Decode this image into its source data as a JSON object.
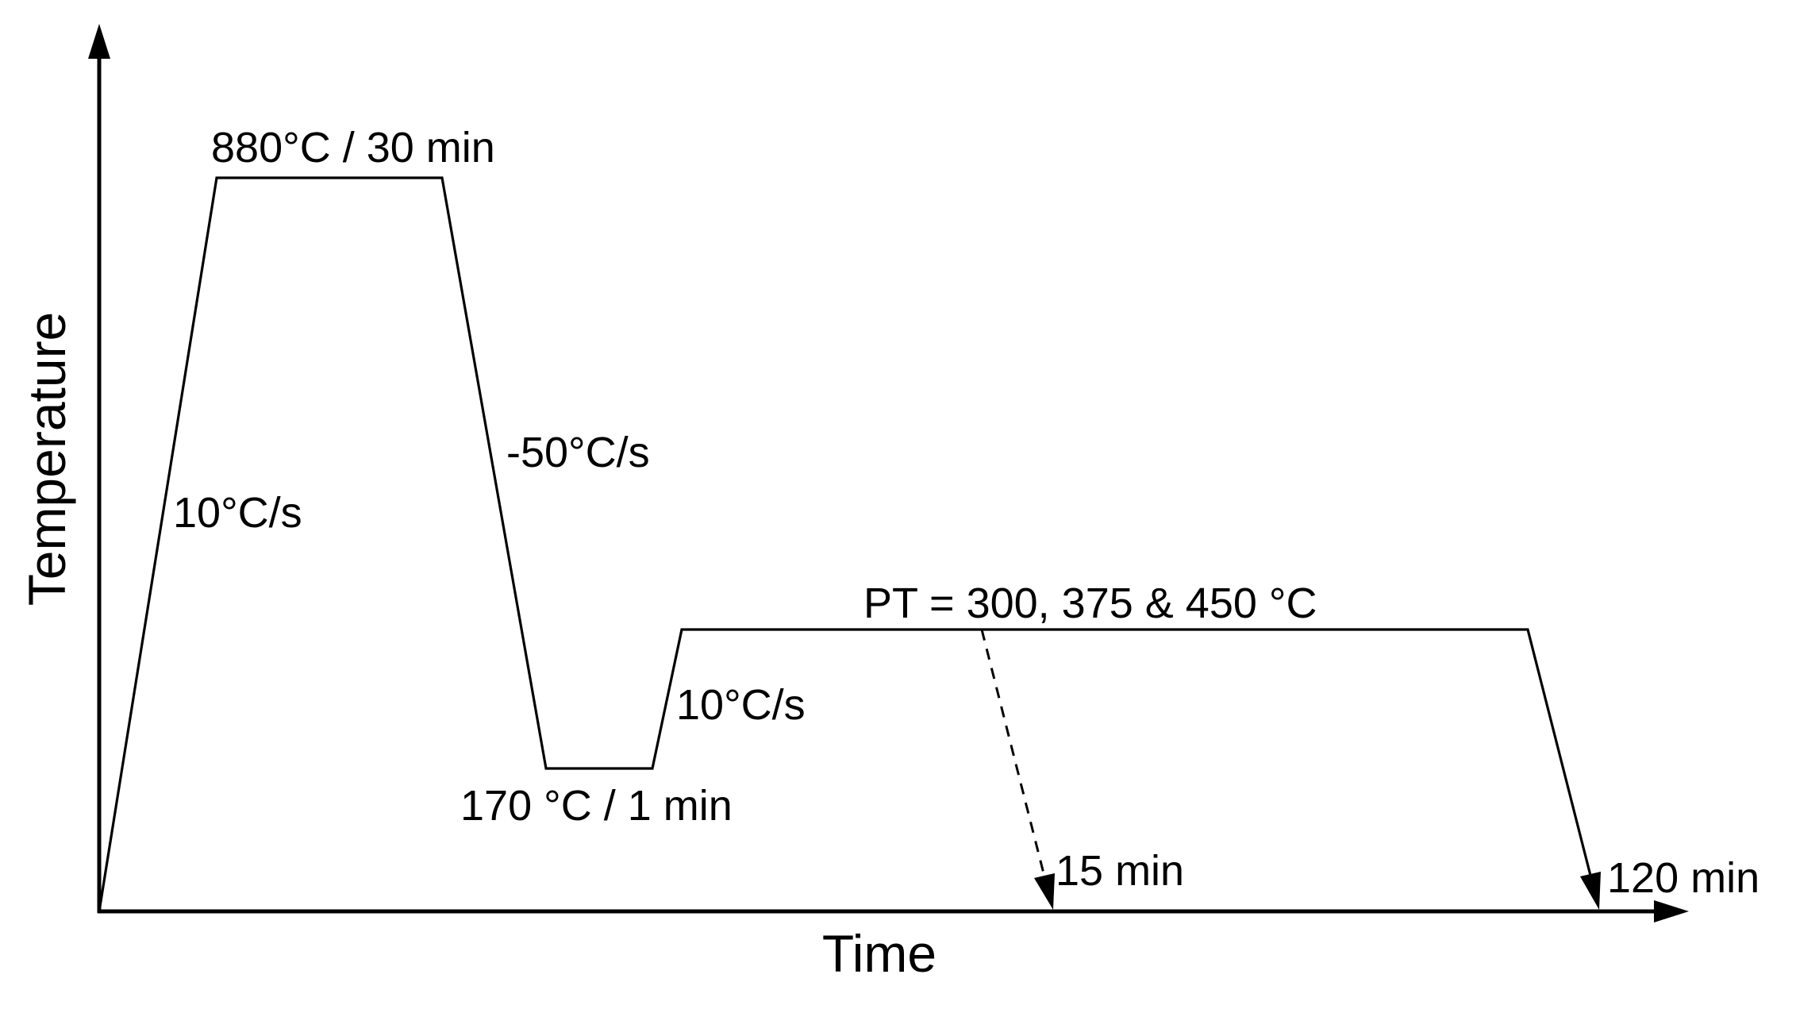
{
  "axes": {
    "x_label": "Time",
    "y_label": "Temperature"
  },
  "labels": {
    "austenitize": "880°C / 30 min",
    "heating_rate": "10°C/s",
    "quench_rate": "-50°C/s",
    "quench_hold": "170 °C / 1 min",
    "reheat_rate": "10°C/s",
    "partition_temps": "PT = 300, 375 & 450 °C",
    "partition_short": "15 min",
    "partition_long": "120 min"
  },
  "colors": {
    "line": "#000000",
    "background": "#ffffff"
  }
}
